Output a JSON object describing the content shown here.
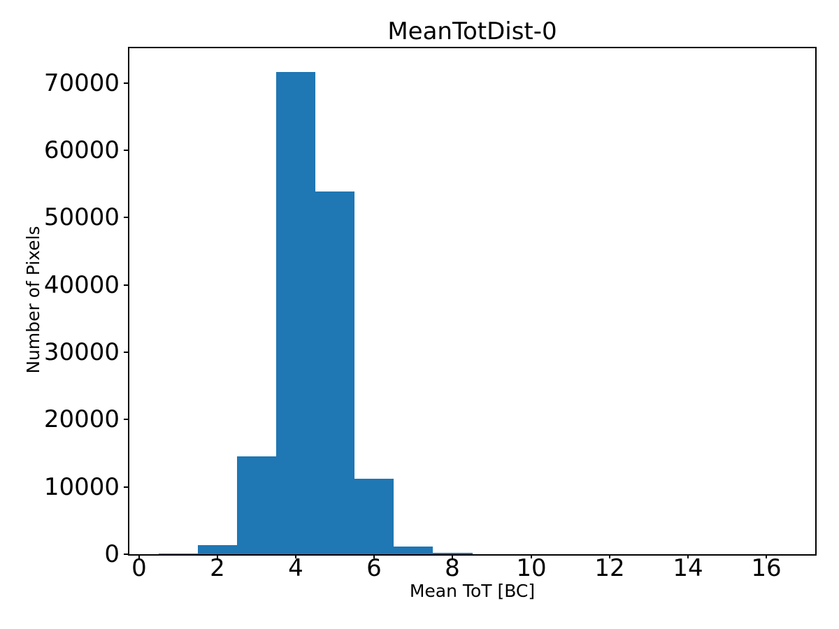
{
  "chart_data": {
    "type": "bar",
    "subtype": "histogram",
    "title": "MeanTotDist-0",
    "xlabel": "Mean ToT [BC]",
    "ylabel": "Number of Pixels",
    "bin_centers": [
      1,
      2,
      3,
      4,
      5,
      6,
      7,
      8,
      9,
      10,
      11,
      12,
      13,
      14,
      15,
      16
    ],
    "bin_width": 1,
    "values": [
      150,
      1400,
      14500,
      71600,
      53900,
      11200,
      1150,
      200,
      0,
      0,
      0,
      0,
      0,
      0,
      0,
      0
    ],
    "xticks": [
      0,
      2,
      4,
      6,
      8,
      10,
      12,
      14,
      16
    ],
    "yticks": [
      0,
      10000,
      20000,
      30000,
      40000,
      50000,
      60000,
      70000
    ],
    "xlim": [
      -0.25,
      17.25
    ],
    "ylim": [
      0,
      75150
    ],
    "grid": false,
    "legend": null,
    "bar_color": "#1f77b4",
    "axis_color": "#000000",
    "background_color": "#ffffff"
  }
}
